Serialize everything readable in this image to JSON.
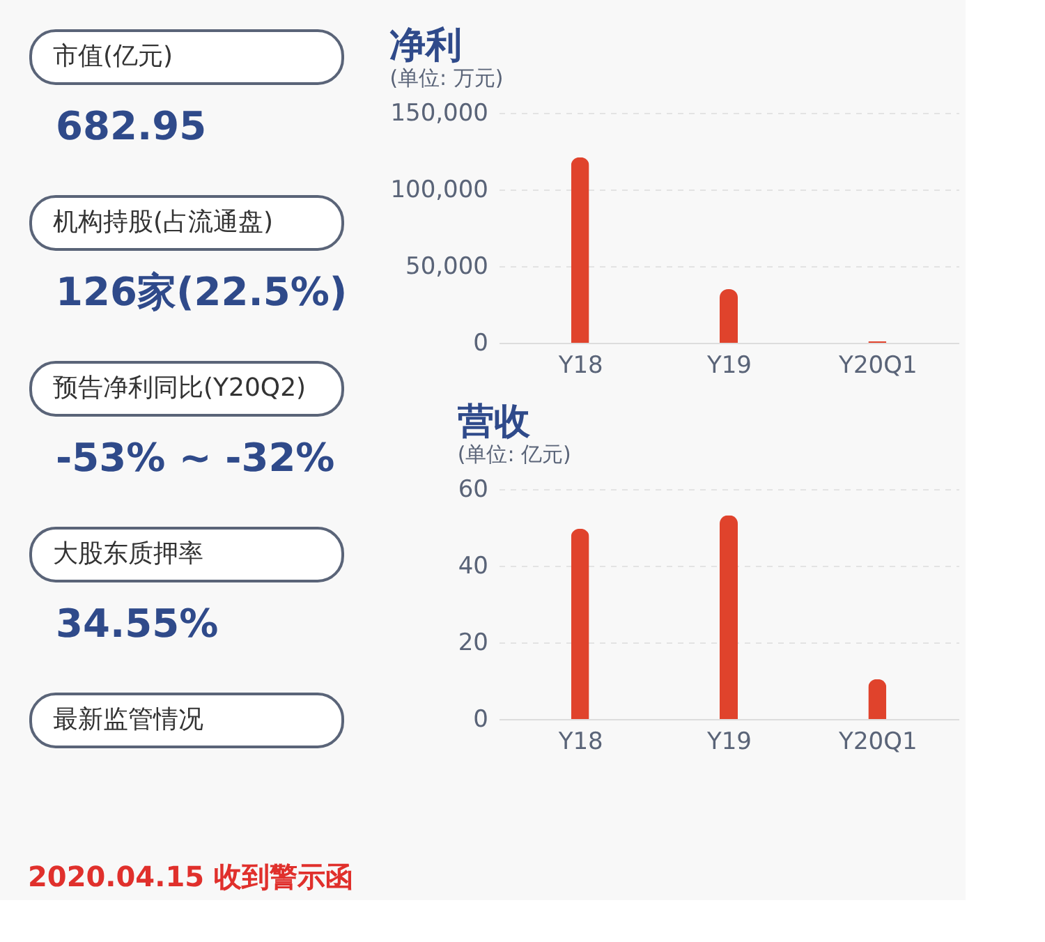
{
  "chart_data": [
    {
      "type": "other",
      "annotations": [
        "市值(亿元)",
        "682.95",
        "机构持股(占流通盘)",
        "126家(22.5%)",
        "预告净利同比(Y20Q2)",
        "-53% ~ -32%",
        "大股东质押率",
        "34.55%",
        "最新监管情况",
        "2020.04.15 收到警示函"
      ]
    },
    {
      "type": "bar",
      "title": "净利",
      "subtitle": "(单位: 万元)",
      "categories": [
        "Y18",
        "Y19",
        "Y20Q1"
      ],
      "values": [
        121000,
        35000,
        1000
      ],
      "color": "#e0432c",
      "ylim": [
        0,
        150000
      ],
      "yticks": [
        0,
        {
          "value": 50000,
          "label": "50,000"
        },
        {
          "value": 100000,
          "label": "100,000"
        },
        {
          "value": 150000,
          "label": "150,000"
        }
      ],
      "grid": "y"
    },
    {
      "type": "bar",
      "title": "营收",
      "subtitle": "(单位: 亿元)",
      "categories": [
        "Y18",
        "Y19",
        "Y20Q1"
      ],
      "values": [
        49.7,
        53.2,
        10.4
      ],
      "color": "#e0432c",
      "ylim": [
        0,
        60
      ],
      "yticks": [
        0,
        20,
        40,
        60
      ],
      "grid": "y"
    }
  ]
}
